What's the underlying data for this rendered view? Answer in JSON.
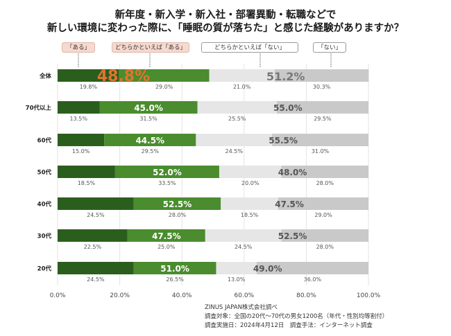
{
  "title_line1": "新年度・新入学・新入社・部署異動・転職などで",
  "title_line2": "新しい環境に変わった際に、「睡眠の質が落ちた」と感じた経験がありますか？",
  "legend": [
    "「ある」",
    "どちらかといえば「ある」",
    "どちらかといえば「ない」",
    "「ない」"
  ],
  "source": [
    "ZINUS JAPAN株式会社調べ",
    "調査対象：全国の20代～70代の男女1200名（年代・性別均等割付）",
    "調査実施日：2024年4月12日　調査手法：インターネット調査"
  ],
  "colors": {
    "aru": "#2b5e1d",
    "dochira_aru": "#4a8c2e",
    "dochira_nai": "#e6e6e6",
    "nai": "#c9c9c9",
    "highlight_orange": "#e2732f",
    "highlight_gray": "#777777"
  },
  "chart_data": {
    "type": "bar",
    "orientation": "horizontal",
    "stacked": true,
    "categories": [
      "全体",
      "70代以上",
      "60代",
      "50代",
      "40代",
      "30代",
      "20代"
    ],
    "series": [
      {
        "name": "「ある」",
        "values": [
          19.8,
          13.5,
          15.0,
          18.5,
          24.5,
          22.5,
          24.5
        ]
      },
      {
        "name": "どちらかといえば「ある」",
        "values": [
          29.0,
          31.5,
          29.5,
          33.5,
          28.0,
          25.0,
          26.5
        ]
      },
      {
        "name": "どちらかといえば「ない」",
        "values": [
          21.0,
          25.5,
          24.5,
          20.0,
          18.5,
          24.5,
          13.0
        ]
      },
      {
        "name": "「ない」",
        "values": [
          30.3,
          29.5,
          31.0,
          28.0,
          29.0,
          28.0,
          36.0
        ]
      }
    ],
    "segment_labels": [
      [
        "19.8%",
        "29.0%",
        "21.0%",
        "30.3%"
      ],
      [
        "13.5%",
        "31.5%",
        "25.5%",
        "29.5%"
      ],
      [
        "15.0%",
        "29.5%",
        "24.5%",
        "31.0%"
      ],
      [
        "18.5%",
        "33.5%",
        "20.0%",
        "28.0%"
      ],
      [
        "24.5%",
        "28.0%",
        "18.5%",
        "29.0%"
      ],
      [
        "22.5%",
        "25.0%",
        "24.5%",
        "28.0%"
      ],
      [
        "24.5%",
        "26.5%",
        "13.0%",
        "36.0%"
      ]
    ],
    "totals_yes": [
      "48.8%",
      "45.0%",
      "44.5%",
      "52.0%",
      "52.5%",
      "47.5%",
      "51.0%"
    ],
    "totals_no": [
      "51.2%",
      "55.0%",
      "55.5%",
      "48.0%",
      "47.5%",
      "52.5%",
      "49.0%"
    ],
    "xticks": [
      "0.0%",
      "20.0%",
      "40.0%",
      "60.0%",
      "80.0%",
      "100.0%"
    ],
    "xlim": [
      0,
      100
    ],
    "grid": true,
    "legend_position": "top"
  }
}
